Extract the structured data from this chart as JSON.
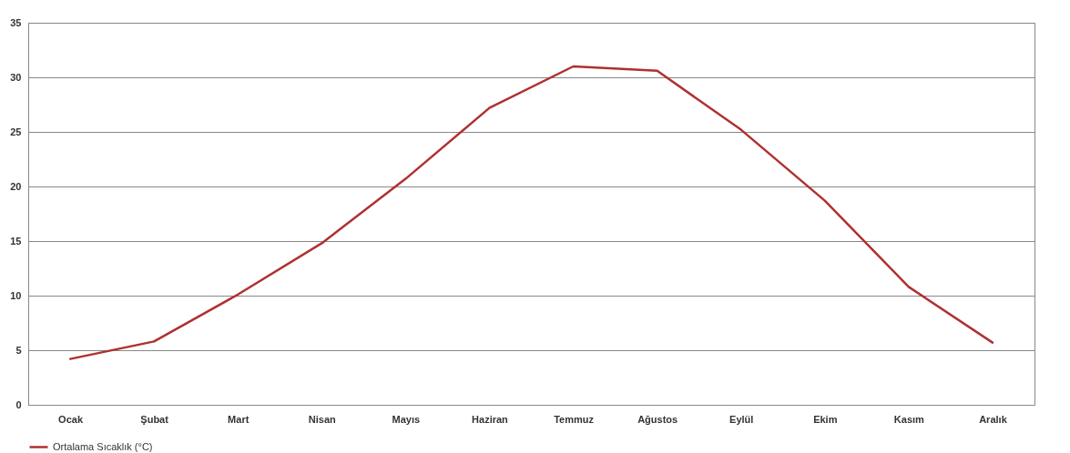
{
  "chart_data": {
    "type": "line",
    "categories": [
      "Ocak",
      "Şubat",
      "Mart",
      "Nisan",
      "Mayıs",
      "Haziran",
      "Temmuz",
      "Ağustos",
      "Eylül",
      "Ekim",
      "Kasım",
      "Aralık"
    ],
    "series": [
      {
        "name": "Ortalama Sıcaklık (°C)",
        "color": "#b03030",
        "values": [
          4.2,
          5.8,
          10.1,
          14.8,
          20.7,
          27.2,
          31.0,
          30.6,
          25.2,
          18.7,
          10.8,
          5.7
        ]
      }
    ],
    "ylim": [
      0,
      35
    ],
    "yticks": [
      0,
      5,
      10,
      15,
      20,
      25,
      30,
      35
    ],
    "grid": "y",
    "legend": "bottom"
  }
}
